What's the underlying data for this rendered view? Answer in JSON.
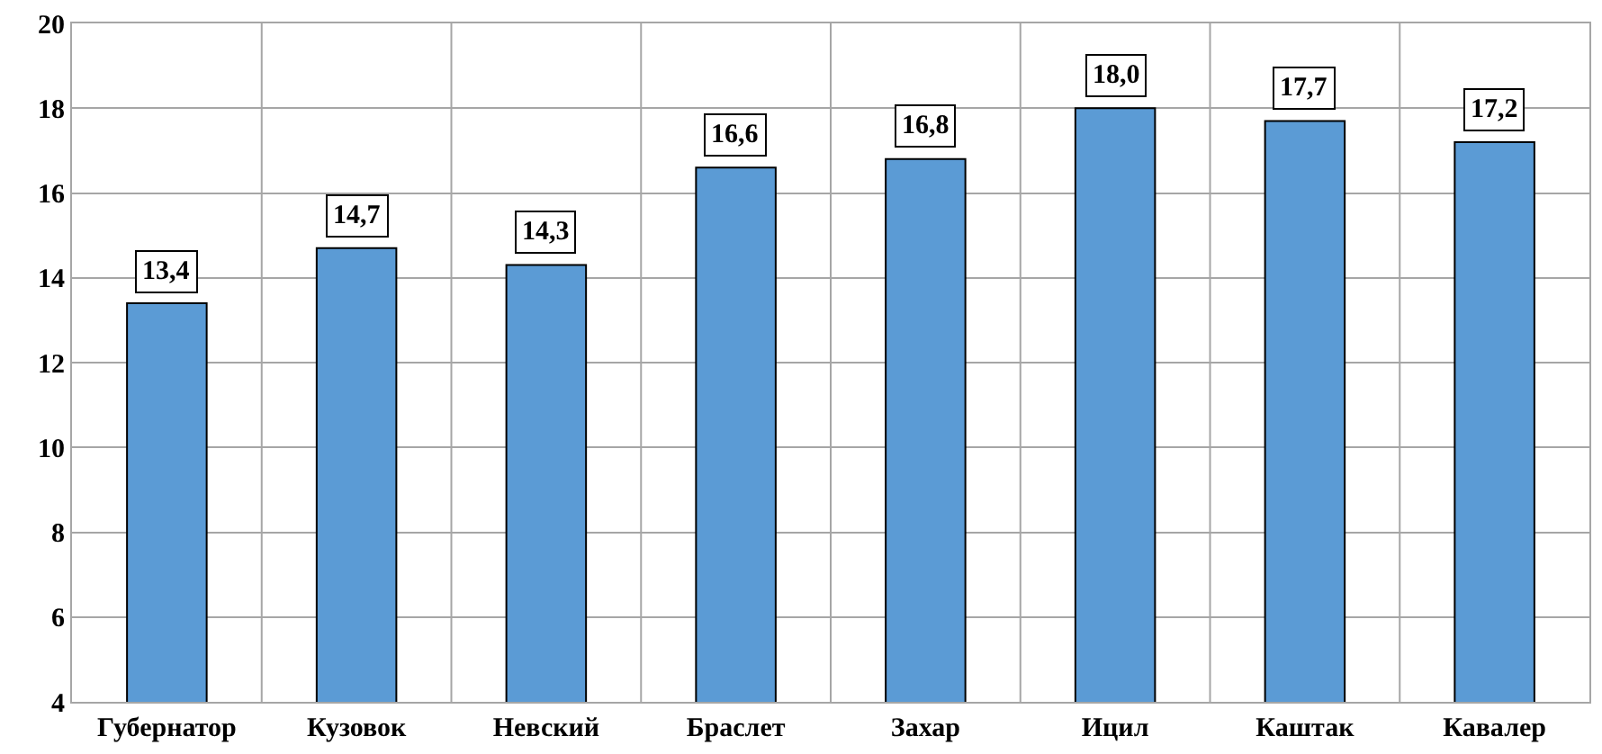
{
  "chart_data": {
    "type": "bar",
    "categories": [
      "Губернатор",
      "Кузовок",
      "Невский",
      "Браслет",
      "Захар",
      "Ицил",
      "Каштак",
      "Кавалер"
    ],
    "values": [
      13.4,
      14.7,
      14.3,
      16.6,
      16.8,
      18.0,
      17.7,
      17.2
    ],
    "value_labels": [
      "13,4",
      "14,7",
      "14,3",
      "16,6",
      "16,8",
      "18,0",
      "17,7",
      "17,2"
    ],
    "color": "#5b9bd5",
    "ylim": [
      4,
      20
    ],
    "yticks": [
      4,
      6,
      8,
      10,
      12,
      14,
      16,
      18,
      20
    ],
    "grid": true
  }
}
